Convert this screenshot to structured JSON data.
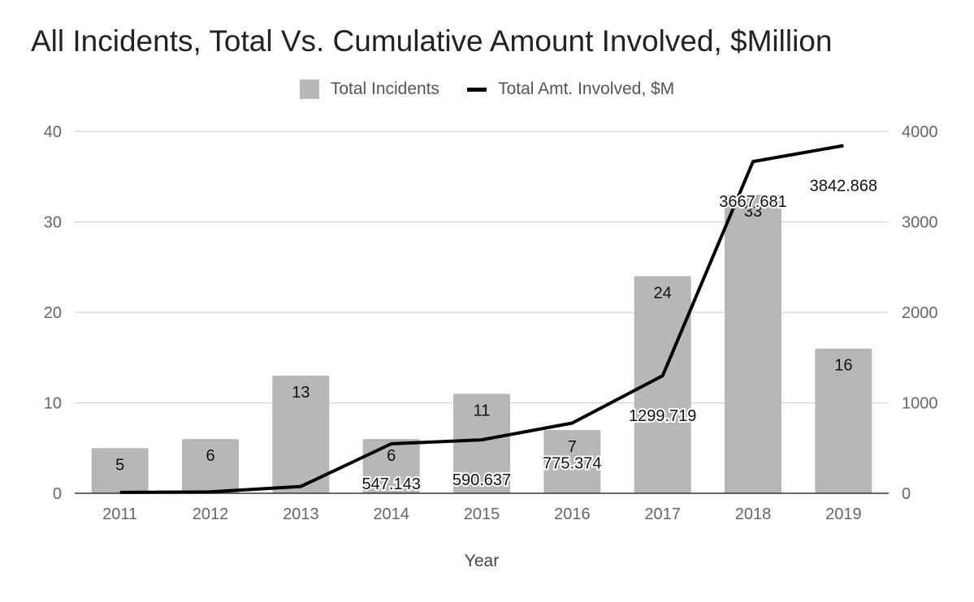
{
  "chart_data": {
    "type": "bar",
    "title": "All Incidents, Total Vs. Cumulative Amount Involved, $Million",
    "xlabel": "Year",
    "ylabel": "",
    "y2label": "",
    "categories": [
      "2011",
      "2012",
      "2013",
      "2014",
      "2015",
      "2016",
      "2017",
      "2018",
      "2019"
    ],
    "ylim": [
      0,
      40
    ],
    "y2lim": [
      0,
      4000
    ],
    "yticks": [
      "0",
      "10",
      "20",
      "30",
      "40"
    ],
    "y2ticks": [
      "0",
      "1000",
      "2000",
      "3000",
      "4000"
    ],
    "grid": true,
    "legend_position": "top",
    "series": [
      {
        "name": "Total Incidents",
        "type": "bar",
        "axis": "left",
        "color": "#b7b7b7",
        "values": [
          5,
          6,
          13,
          6,
          11,
          7,
          24,
          33,
          16
        ],
        "labels": [
          "5",
          "6",
          "13",
          "6",
          "11",
          "7",
          "24",
          "33",
          "16"
        ]
      },
      {
        "name": "Total Amt. Involved, $M",
        "type": "line",
        "axis": "right",
        "color": "#000000",
        "values": [
          10,
          15,
          75,
          547.143,
          590.637,
          775.374,
          1299.719,
          3667.681,
          3842.868
        ],
        "labels": [
          "",
          "",
          "",
          "547.143",
          "590.637",
          "775.374",
          "1299.719",
          "3667.681",
          "3842.868"
        ]
      }
    ]
  }
}
